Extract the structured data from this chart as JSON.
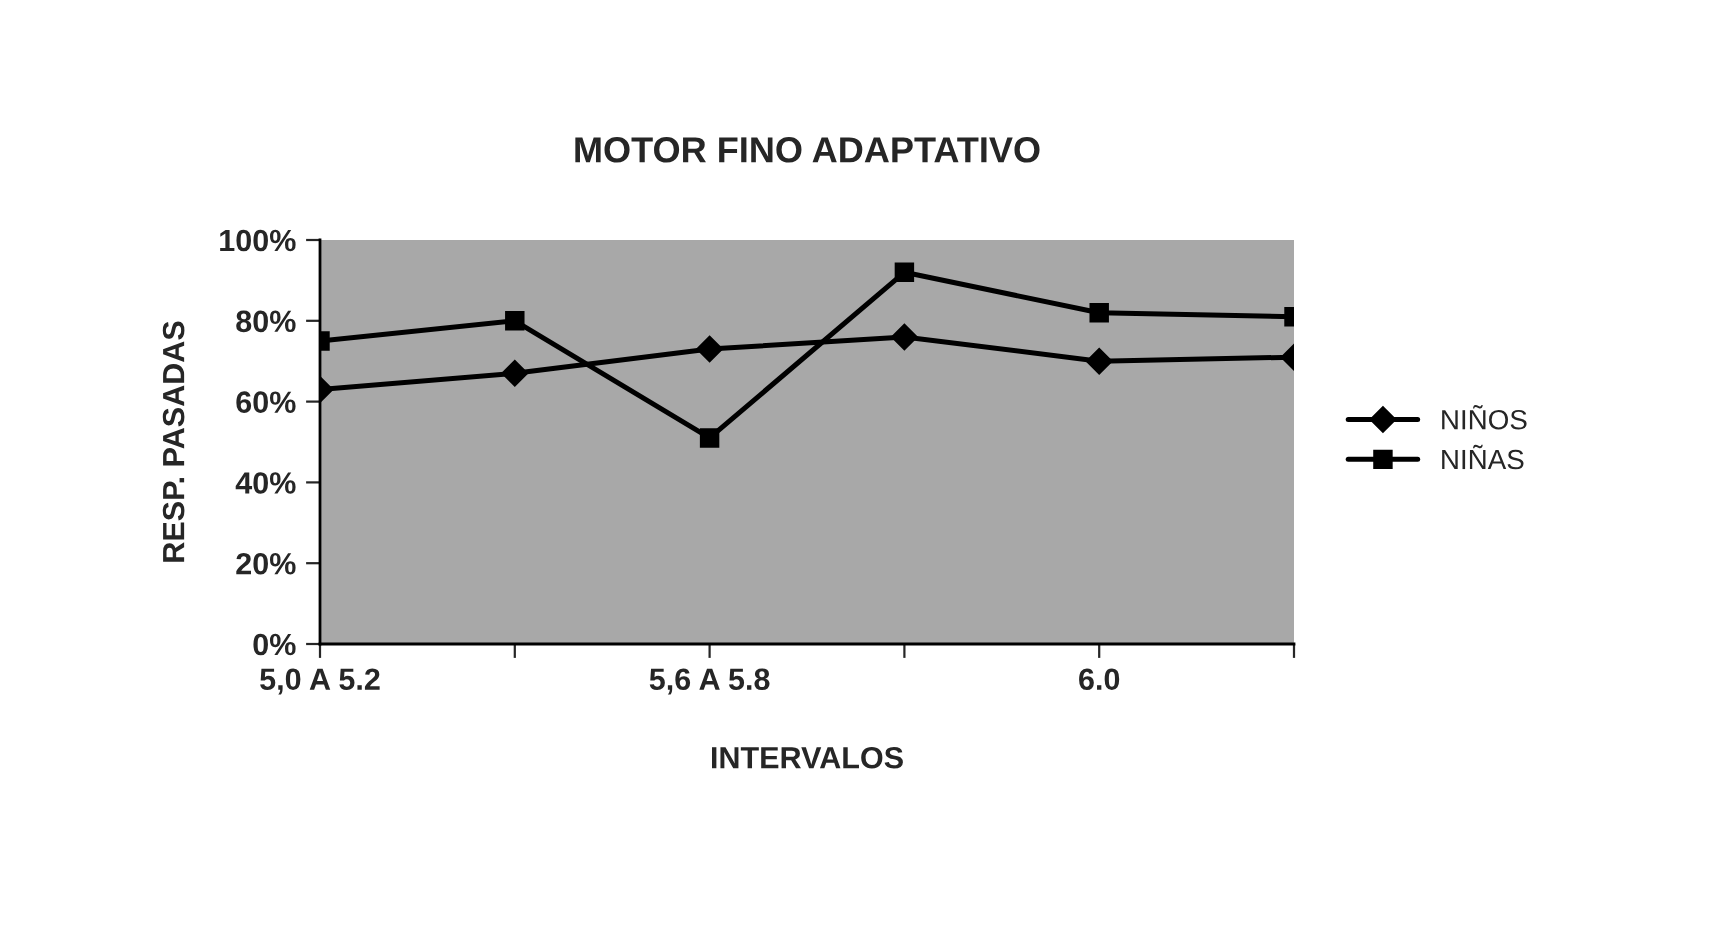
{
  "chart_data": {
    "type": "line",
    "title": "MOTOR FINO ADAPTATIVO",
    "xlabel": "INTERVALOS",
    "ylabel": "RESP. PASADAS",
    "categories": [
      "5,0 A 5.2",
      null,
      "5,6 A 5.8",
      null,
      "6.0",
      null
    ],
    "series": [
      {
        "name": "NIÑOS",
        "color": "#000000",
        "marker": "diamond",
        "values": [
          63,
          67,
          73,
          76,
          70,
          71
        ]
      },
      {
        "name": "NIÑAS",
        "color": "#000000",
        "marker": "square",
        "values": [
          75,
          80,
          51,
          92,
          82,
          81
        ]
      }
    ],
    "ylim": [
      0,
      100
    ],
    "yticks": [
      {
        "value": 0,
        "label": "0%"
      },
      {
        "value": 20,
        "label": "20%"
      },
      {
        "value": 40,
        "label": "40%"
      },
      {
        "value": 60,
        "label": "60%"
      },
      {
        "value": 80,
        "label": "80%"
      },
      {
        "value": 100,
        "label": "100%"
      }
    ],
    "grid": false,
    "legend": "right"
  }
}
